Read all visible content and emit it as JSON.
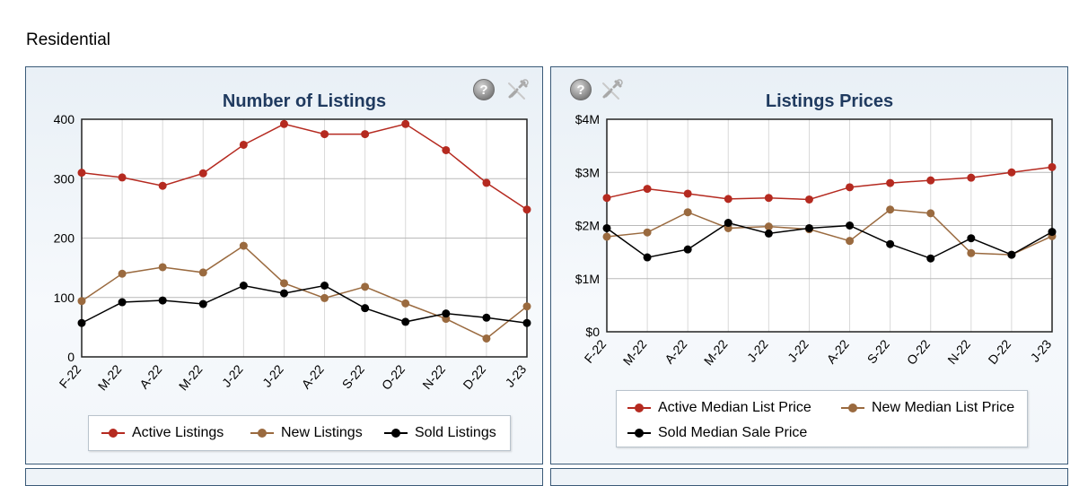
{
  "section": {
    "title": "Residential"
  },
  "colors": {
    "active": "#b52a20",
    "new": "#9a6a3f",
    "sold": "#000000",
    "title": "#1f3a5f"
  },
  "chart_data": [
    {
      "type": "line",
      "title": "Number of Listings",
      "categories": [
        "F-22",
        "M-22",
        "A-22",
        "M-22",
        "J-22",
        "J-22",
        "A-22",
        "S-22",
        "O-22",
        "N-22",
        "D-22",
        "J-23"
      ],
      "ylim": [
        0,
        400
      ],
      "yticks": [
        0,
        100,
        200,
        300,
        400
      ],
      "ytick_labels": [
        "0",
        "100",
        "200",
        "300",
        "400"
      ],
      "series": [
        {
          "name": "Active Listings",
          "color": "#b52a20",
          "values": [
            310,
            302,
            288,
            309,
            357,
            392,
            375,
            375,
            392,
            348,
            293,
            248
          ]
        },
        {
          "name": "New Listings",
          "color": "#9a6a3f",
          "values": [
            94,
            140,
            151,
            142,
            187,
            124,
            99,
            118,
            90,
            64,
            31,
            85
          ]
        },
        {
          "name": "Sold Listings",
          "color": "#000000",
          "values": [
            57,
            92,
            95,
            89,
            120,
            107,
            120,
            82,
            59,
            73,
            66,
            57
          ]
        }
      ],
      "legend_position": "bottom"
    },
    {
      "type": "line",
      "title": "Listings Prices",
      "categories": [
        "F-22",
        "M-22",
        "A-22",
        "M-22",
        "J-22",
        "J-22",
        "A-22",
        "S-22",
        "O-22",
        "N-22",
        "D-22",
        "J-23"
      ],
      "ylim": [
        0,
        4000000
      ],
      "yticks": [
        0,
        1000000,
        2000000,
        3000000,
        4000000
      ],
      "ytick_labels": [
        "$0",
        "$1M",
        "$2M",
        "$3M",
        "$4M"
      ],
      "series": [
        {
          "name": "Active Median List Price",
          "color": "#b52a20",
          "values": [
            2520000,
            2690000,
            2600000,
            2500000,
            2520000,
            2490000,
            2720000,
            2800000,
            2850000,
            2900000,
            3000000,
            3100000
          ]
        },
        {
          "name": "New Median List Price",
          "color": "#9a6a3f",
          "values": [
            1790000,
            1870000,
            2250000,
            1950000,
            1980000,
            1930000,
            1710000,
            2300000,
            2230000,
            1480000,
            1450000,
            1800000
          ]
        },
        {
          "name": "Sold Median Sale Price",
          "color": "#000000",
          "values": [
            1950000,
            1400000,
            1550000,
            2050000,
            1850000,
            1950000,
            2000000,
            1650000,
            1380000,
            1760000,
            1450000,
            1880000
          ]
        }
      ],
      "legend_position": "bottom"
    }
  ],
  "icons": {
    "help": "help-icon",
    "tools": "tools-icon"
  }
}
